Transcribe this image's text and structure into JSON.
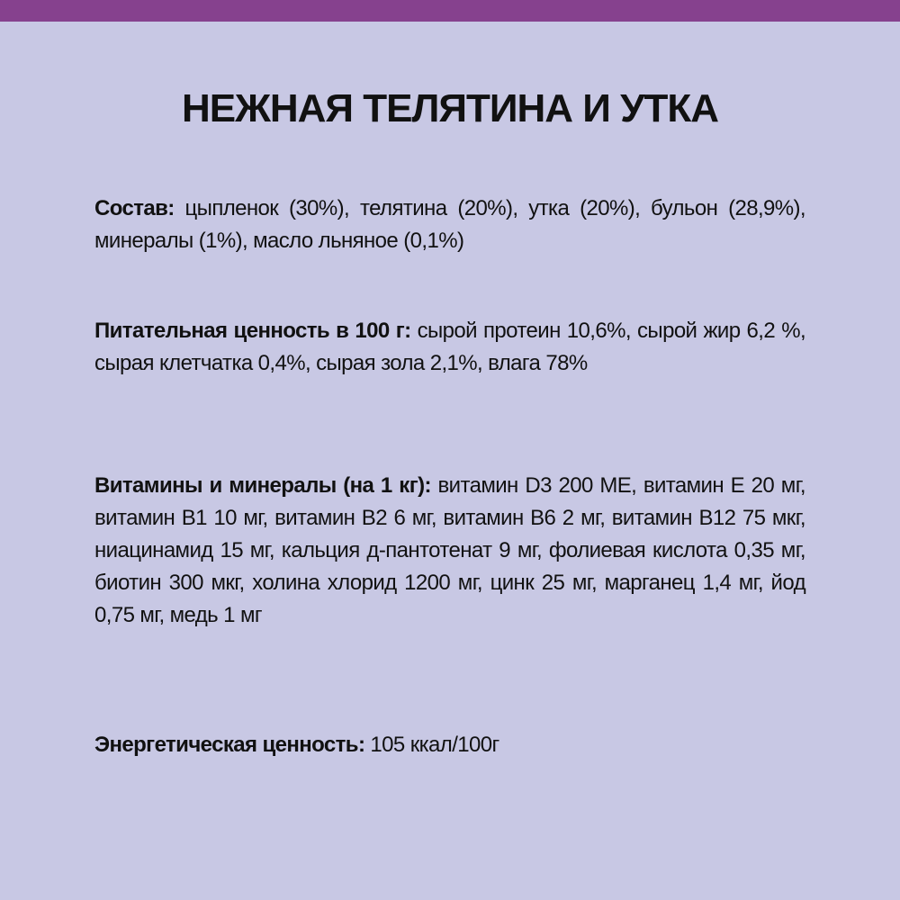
{
  "colors": {
    "top_bar": "#86418e",
    "background": "#c8c8e4",
    "text": "#111111"
  },
  "title": "НЕЖНАЯ ТЕЛЯТИНА И УТКА",
  "sections": [
    {
      "label": "Состав:",
      "text": " цыпленок (30%), телятина (20%), утка (20%), бульон (28,9%), минералы (1%), масло льняное (0,1%)"
    },
    {
      "label": "Питательная ценность в 100 г:",
      "text": " сырой протеин 10,6%, сырой жир 6,2 %, сырая клетчатка 0,4%, сырая зола 2,1%, влага 78%"
    },
    {
      "label": "Витамины и минералы (на 1 кг):",
      "text": " витамин D3 200 МЕ, витамин E 20 мг, витамин B1 10 мг, витамин B2 6 мг, витамин B6 2 мг, витамин B12 75 мкг, ниацинамид 15 мг, кальция д-пантотенат 9 мг, фолиевая кислота 0,35 мг, биотин 300 мкг, холина хлорид 1200 мг, цинк 25 мг, марганец 1,4 мг, йод 0,75 мг, медь 1 мг"
    },
    {
      "label": "Энергетическая ценность:",
      "text": " 105 ккал/100г"
    }
  ]
}
